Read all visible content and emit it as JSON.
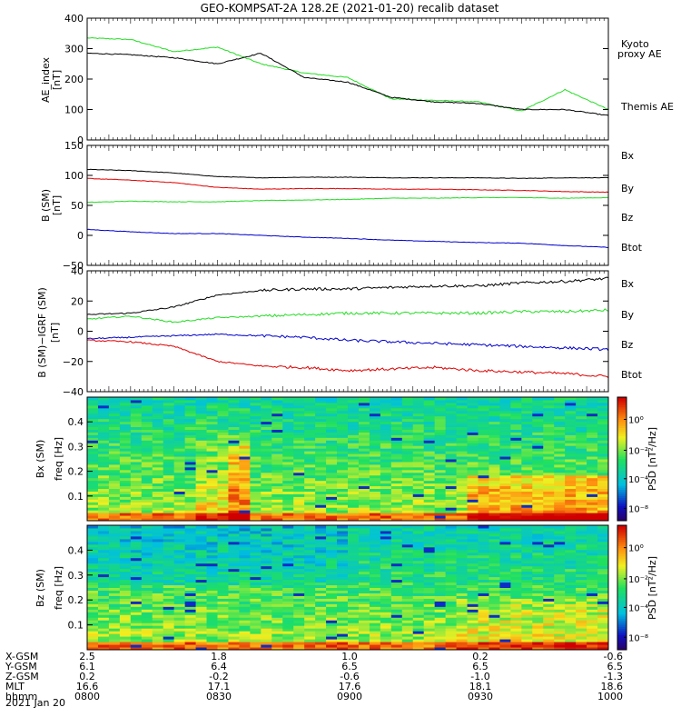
{
  "title": "GEO-KOMPSAT-2A 128.2E (2021-01-20) recalib dataset",
  "colors": {
    "black": "#000000",
    "red": "#e00000",
    "green": "#22dd22",
    "blue": "#0000cc",
    "kyoto": "#22dd22"
  },
  "panels": [
    {
      "id": "ae",
      "ylabel_lines": [
        "AE_index",
        "[nT]"
      ],
      "ylim": [
        0,
        400
      ],
      "yticks": [
        "0",
        "100",
        "200",
        "300",
        "400"
      ],
      "legend": [
        {
          "text": "Kyoto",
          "color": "#22dd22"
        },
        {
          "text": "proxy AE",
          "color": "#22dd22"
        },
        {
          "text": "Themis AE",
          "color": "#000000"
        }
      ]
    },
    {
      "id": "b_sm",
      "ylabel_lines": [
        "B (SM)",
        "[nT]"
      ],
      "ylim": [
        -50,
        150
      ],
      "yticks": [
        "−50",
        "0",
        "50",
        "100",
        "150"
      ],
      "legend": [
        {
          "text": "Bx",
          "color": "#0000cc"
        },
        {
          "text": "By",
          "color": "#22aa22"
        },
        {
          "text": "Bz",
          "color": "#e00000"
        },
        {
          "text": "Btot",
          "color": "#000000"
        }
      ]
    },
    {
      "id": "b_igrf",
      "ylabel_lines": [
        "B (SM)−IGRF (SM)",
        "[nT]"
      ],
      "ylim": [
        -40,
        40
      ],
      "yticks": [
        "−40",
        "−20",
        "0",
        "20",
        "40"
      ],
      "legend": [
        {
          "text": "Bx",
          "color": "#0000cc"
        },
        {
          "text": "By",
          "color": "#22aa22"
        },
        {
          "text": "Bz",
          "color": "#e00000"
        },
        {
          "text": "Btot",
          "color": "#000000"
        }
      ]
    },
    {
      "id": "bx_spec",
      "ylabel_lines": [
        "Bx (SM)",
        "freq [Hz]"
      ],
      "ylim": [
        0,
        0.5
      ],
      "yticks": [
        "0.1",
        "0.2",
        "0.3",
        "0.4"
      ],
      "colorbar_label": "PSD [nT²/Hz]",
      "colorbar_ticks": [
        "10⁰",
        "10⁻²",
        "10⁻⁴",
        "10⁻⁸"
      ]
    },
    {
      "id": "bz_spec",
      "ylabel_lines": [
        "Bz (SM)",
        "freq [Hz]"
      ],
      "ylim": [
        0,
        0.5
      ],
      "yticks": [
        "0.1",
        "0.2",
        "0.3",
        "0.4"
      ],
      "colorbar_label": "PSD [nT²/Hz]",
      "colorbar_ticks": [
        "10⁰",
        "10⁻²",
        "10⁻⁴",
        "10⁻⁸"
      ]
    }
  ],
  "chart_data": [
    {
      "type": "line",
      "title": "GEO-KOMPSAT-2A 128.2E (2021-01-20) recalib dataset",
      "ylabel": "AE_index [nT]",
      "ylim": [
        0,
        400
      ],
      "x_time": [
        "0800",
        "0810",
        "0820",
        "0830",
        "0840",
        "0850",
        "0900",
        "0910",
        "0920",
        "0930",
        "0940",
        "0950",
        "1000"
      ],
      "series": [
        {
          "name": "Kyoto proxy AE",
          "color": "#22dd22",
          "values": [
            335,
            330,
            290,
            305,
            250,
            220,
            205,
            135,
            130,
            125,
            95,
            165,
            100
          ]
        },
        {
          "name": "Themis AE",
          "color": "#000000",
          "values": [
            285,
            280,
            270,
            250,
            285,
            205,
            190,
            140,
            125,
            120,
            100,
            100,
            80
          ]
        }
      ]
    },
    {
      "type": "line",
      "ylabel": "B (SM) [nT]",
      "ylim": [
        -50,
        150
      ],
      "x_time": [
        "0800",
        "0810",
        "0820",
        "0830",
        "0840",
        "0850",
        "0900",
        "0910",
        "0920",
        "0930",
        "0940",
        "0950",
        "1000"
      ],
      "series": [
        {
          "name": "Btot",
          "color": "#000000",
          "values": [
            110,
            108,
            104,
            98,
            96,
            97,
            97,
            96,
            96,
            96,
            95,
            96,
            96
          ]
        },
        {
          "name": "Bz",
          "color": "#e00000",
          "values": [
            95,
            92,
            88,
            80,
            77,
            78,
            78,
            77,
            77,
            76,
            75,
            73,
            72
          ]
        },
        {
          "name": "By",
          "color": "#22dd22",
          "values": [
            55,
            57,
            56,
            56,
            58,
            59,
            60,
            62,
            62,
            63,
            63,
            62,
            63
          ]
        },
        {
          "name": "Bx",
          "color": "#0000cc",
          "values": [
            10,
            6,
            3,
            3,
            0,
            -3,
            -5,
            -8,
            -10,
            -12,
            -13,
            -17,
            -20
          ]
        }
      ]
    },
    {
      "type": "line",
      "ylabel": "B (SM)-IGRF (SM) [nT]",
      "ylim": [
        -40,
        40
      ],
      "x_time": [
        "0800",
        "0810",
        "0820",
        "0830",
        "0840",
        "0850",
        "0900",
        "0910",
        "0920",
        "0930",
        "0940",
        "0950",
        "1000"
      ],
      "series": [
        {
          "name": "Btot",
          "color": "#000000",
          "values": [
            11,
            12,
            16,
            24,
            27,
            28,
            28,
            29,
            30,
            30,
            32,
            33,
            35
          ]
        },
        {
          "name": "By",
          "color": "#22dd22",
          "values": [
            8,
            10,
            6,
            9,
            10,
            11,
            12,
            12,
            12,
            12,
            13,
            13,
            14
          ]
        },
        {
          "name": "Bx",
          "color": "#0000cc",
          "values": [
            -5,
            -4,
            -3,
            -2,
            -3,
            -4,
            -6,
            -7,
            -8,
            -9,
            -10,
            -11,
            -12
          ]
        },
        {
          "name": "Bz",
          "color": "#e00000",
          "values": [
            -6,
            -7,
            -10,
            -20,
            -23,
            -24,
            -26,
            -25,
            -24,
            -26,
            -27,
            -28,
            -30
          ]
        }
      ]
    },
    {
      "type": "heatmap",
      "ylabel": "Bx (SM) freq [Hz]",
      "ylim": [
        0,
        0.5
      ],
      "colorbar_label": "PSD [nT²/Hz]"
    },
    {
      "type": "heatmap",
      "ylabel": "Bz (SM) freq [Hz]",
      "ylim": [
        0,
        0.5
      ],
      "colorbar_label": "PSD [nT²/Hz]"
    }
  ],
  "xaxis": {
    "rows": [
      {
        "label": "X-GSM",
        "values": [
          "2.5",
          "1.8",
          "1.0",
          "0.2",
          "-0.6"
        ]
      },
      {
        "label": "Y-GSM",
        "values": [
          "6.1",
          "6.4",
          "6.5",
          "6.5",
          "6.5"
        ]
      },
      {
        "label": "Z-GSM",
        "values": [
          "0.2",
          "-0.2",
          "-0.6",
          "-1.0",
          "-1.3"
        ]
      },
      {
        "label": "MLT",
        "values": [
          "16.6",
          "17.1",
          "17.6",
          "18.1",
          "18.6"
        ]
      },
      {
        "label": "hhmm",
        "values": [
          "0800",
          "0830",
          "0900",
          "0930",
          "1000"
        ]
      }
    ],
    "date": "2021 Jan 20"
  }
}
